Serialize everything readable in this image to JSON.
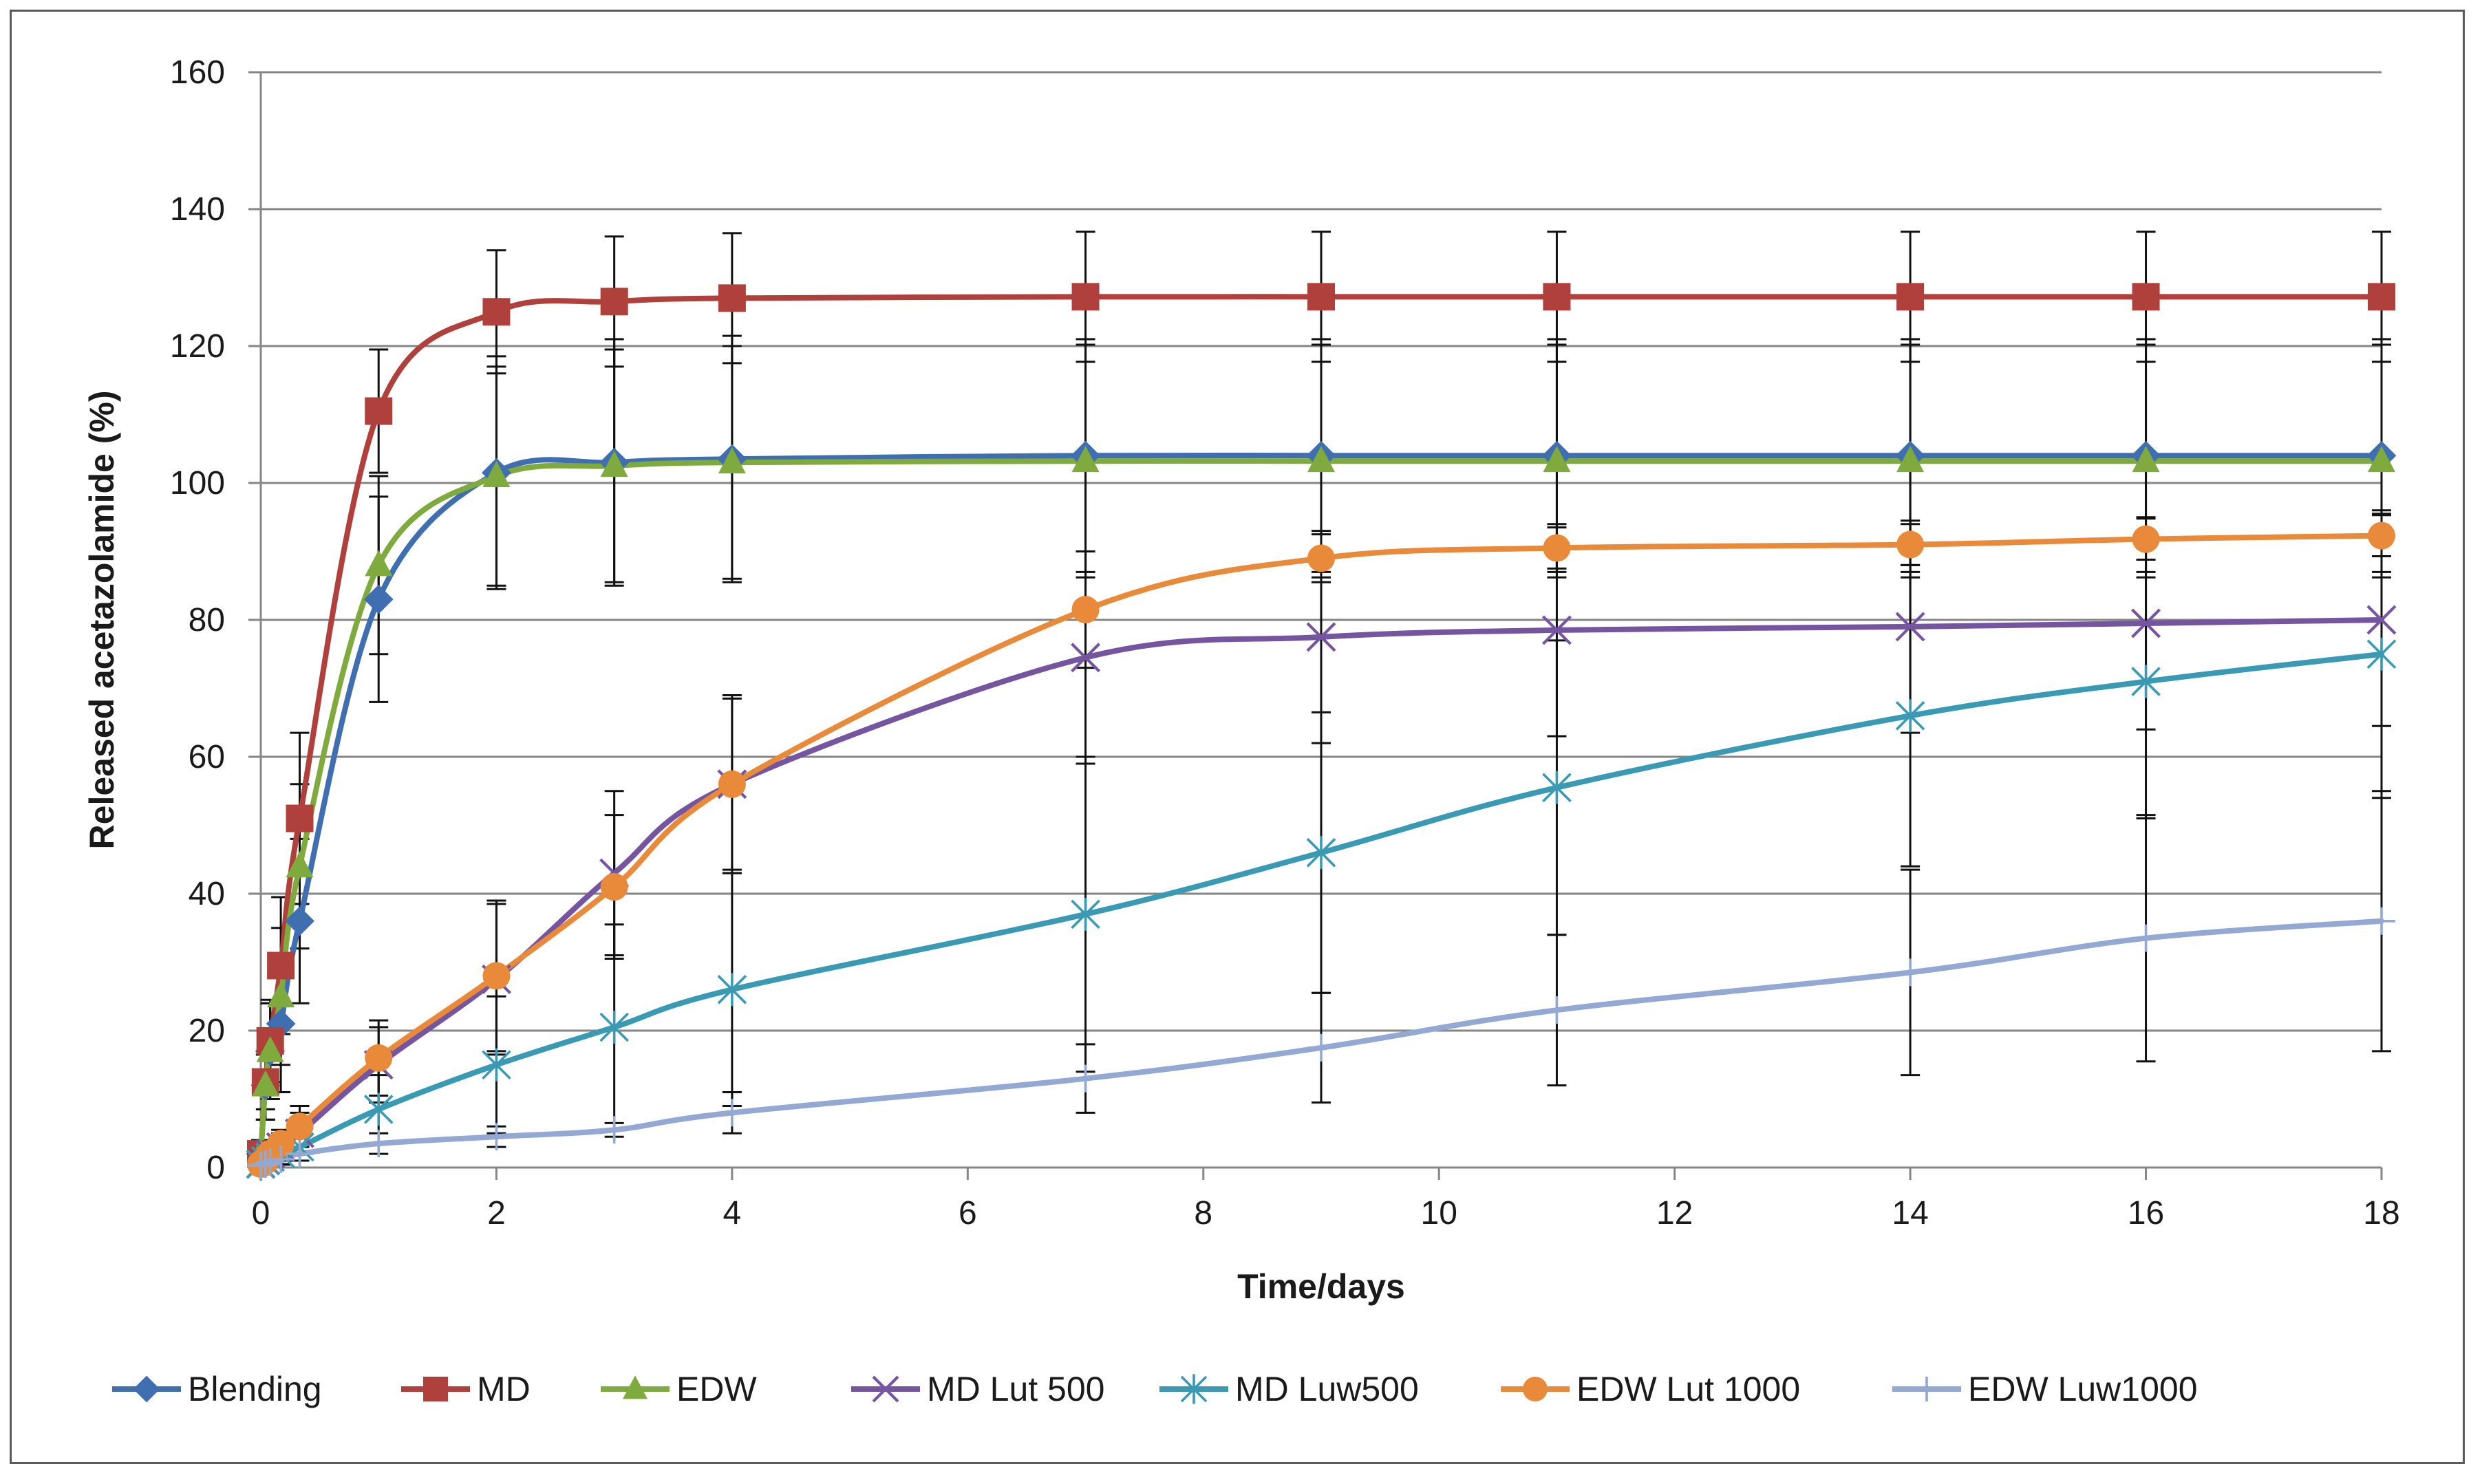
{
  "chart_data": {
    "type": "line",
    "title": "",
    "xlabel": "Time/days",
    "ylabel": "Released acetazolamide  (%)",
    "xlim": [
      0,
      18
    ],
    "ylim": [
      0,
      160
    ],
    "xticks": [
      0,
      2,
      4,
      6,
      8,
      10,
      12,
      14,
      16,
      18
    ],
    "yticks": [
      0,
      20,
      40,
      60,
      80,
      100,
      120,
      140,
      160
    ],
    "grid": "horizontal",
    "legend_position": "bottom",
    "series": [
      {
        "name": "Blending",
        "color": "#3f6fb0",
        "marker": "diamond",
        "x": [
          0,
          0.04,
          0.08,
          0.17,
          0.33,
          1,
          2,
          3,
          4,
          7,
          9,
          11,
          14,
          16,
          18
        ],
        "values": [
          2,
          12,
          17,
          21,
          36,
          83,
          101.5,
          103,
          103.5,
          104,
          104,
          104,
          104,
          104,
          104
        ],
        "err": [
          2,
          5,
          7,
          10,
          12,
          15,
          17,
          18,
          18,
          17,
          17,
          17,
          17,
          17,
          17
        ]
      },
      {
        "name": "MD",
        "color": "#b0403c",
        "marker": "square",
        "x": [
          0,
          0.04,
          0.08,
          0.17,
          0.33,
          1,
          2,
          3,
          4,
          7,
          9,
          11,
          14,
          16,
          18
        ],
        "values": [
          2,
          12.5,
          18.5,
          29.5,
          51,
          110.5,
          125,
          126.5,
          127,
          127.2,
          127.2,
          127.2,
          127.2,
          127.2,
          127.2
        ],
        "err": [
          1,
          4,
          6,
          10,
          12.5,
          9,
          9,
          9.5,
          9.5,
          9.5,
          9.5,
          9.5,
          9.5,
          9.5,
          9.5
        ]
      },
      {
        "name": "EDW",
        "color": "#7faa3d",
        "marker": "triangle",
        "x": [
          0,
          0.04,
          0.08,
          0.17,
          0.33,
          1,
          2,
          3,
          4,
          7,
          9,
          11,
          14,
          16,
          18
        ],
        "values": [
          2,
          12,
          17,
          25,
          44,
          88,
          101,
          102.5,
          103,
          103.2,
          103.2,
          103.2,
          103.2,
          103.2,
          103.2
        ],
        "err": [
          2,
          5,
          7,
          10,
          12,
          13,
          16,
          17,
          17,
          17,
          17,
          17,
          17,
          17,
          17
        ]
      },
      {
        "name": "MD Lut 500",
        "color": "#7655a0",
        "marker": "x",
        "x": [
          0,
          0.04,
          0.08,
          0.17,
          0.33,
          1,
          2,
          3,
          4,
          7,
          9,
          11,
          14,
          16,
          18
        ],
        "values": [
          0.5,
          1,
          2,
          3,
          5,
          15,
          27.5,
          43,
          56,
          74.5,
          77.5,
          78.5,
          79,
          79.5,
          80
        ],
        "err": [
          0.5,
          1,
          1.5,
          2,
          3,
          5.5,
          11,
          12,
          13,
          15.5,
          15.5,
          15.5,
          15.5,
          15.5,
          15.5
        ]
      },
      {
        "name": "MD Luw500",
        "color": "#3a9ab4",
        "marker": "asterisk",
        "x": [
          0,
          0.04,
          0.08,
          0.17,
          0.33,
          1,
          2,
          3,
          4,
          7,
          9,
          11,
          14,
          16,
          18
        ],
        "values": [
          0.5,
          1,
          1.5,
          2,
          3,
          8.5,
          15,
          20.5,
          26,
          37,
          46,
          55.5,
          66,
          71,
          75
        ],
        "err": [
          0.3,
          0.5,
          1,
          1.5,
          2,
          5,
          10,
          15,
          17,
          23,
          20.5,
          21.5,
          22,
          20,
          21
        ]
      },
      {
        "name": "EDW Lut 1000",
        "color": "#e98a3a",
        "marker": "circle",
        "x": [
          0,
          0.04,
          0.08,
          0.17,
          0.33,
          1,
          2,
          3,
          4,
          7,
          9,
          11,
          14,
          16,
          18
        ],
        "values": [
          0.5,
          1,
          2,
          3.5,
          6,
          16,
          28,
          41,
          56,
          81.5,
          89,
          90.5,
          91,
          91.8,
          92.3
        ],
        "err": [
          0.5,
          1,
          1.5,
          2,
          3,
          5.5,
          11,
          10.5,
          12.5,
          8.5,
          3.5,
          3,
          3,
          3,
          3
        ]
      },
      {
        "name": "EDW Luw1000",
        "color": "#93a9d3",
        "marker": "plus",
        "x": [
          0,
          0.04,
          0.08,
          0.17,
          0.33,
          1,
          2,
          3,
          4,
          7,
          9,
          11,
          14,
          16,
          18
        ],
        "values": [
          0.3,
          0.5,
          0.8,
          1.2,
          2,
          3.5,
          4.5,
          5.5,
          8,
          13,
          17.5,
          23,
          28.5,
          33.5,
          36
        ],
        "err": [
          0.2,
          0.3,
          0.5,
          0.8,
          1,
          1.5,
          1.5,
          1,
          3,
          5,
          8,
          11,
          15,
          18,
          19
        ]
      }
    ]
  }
}
